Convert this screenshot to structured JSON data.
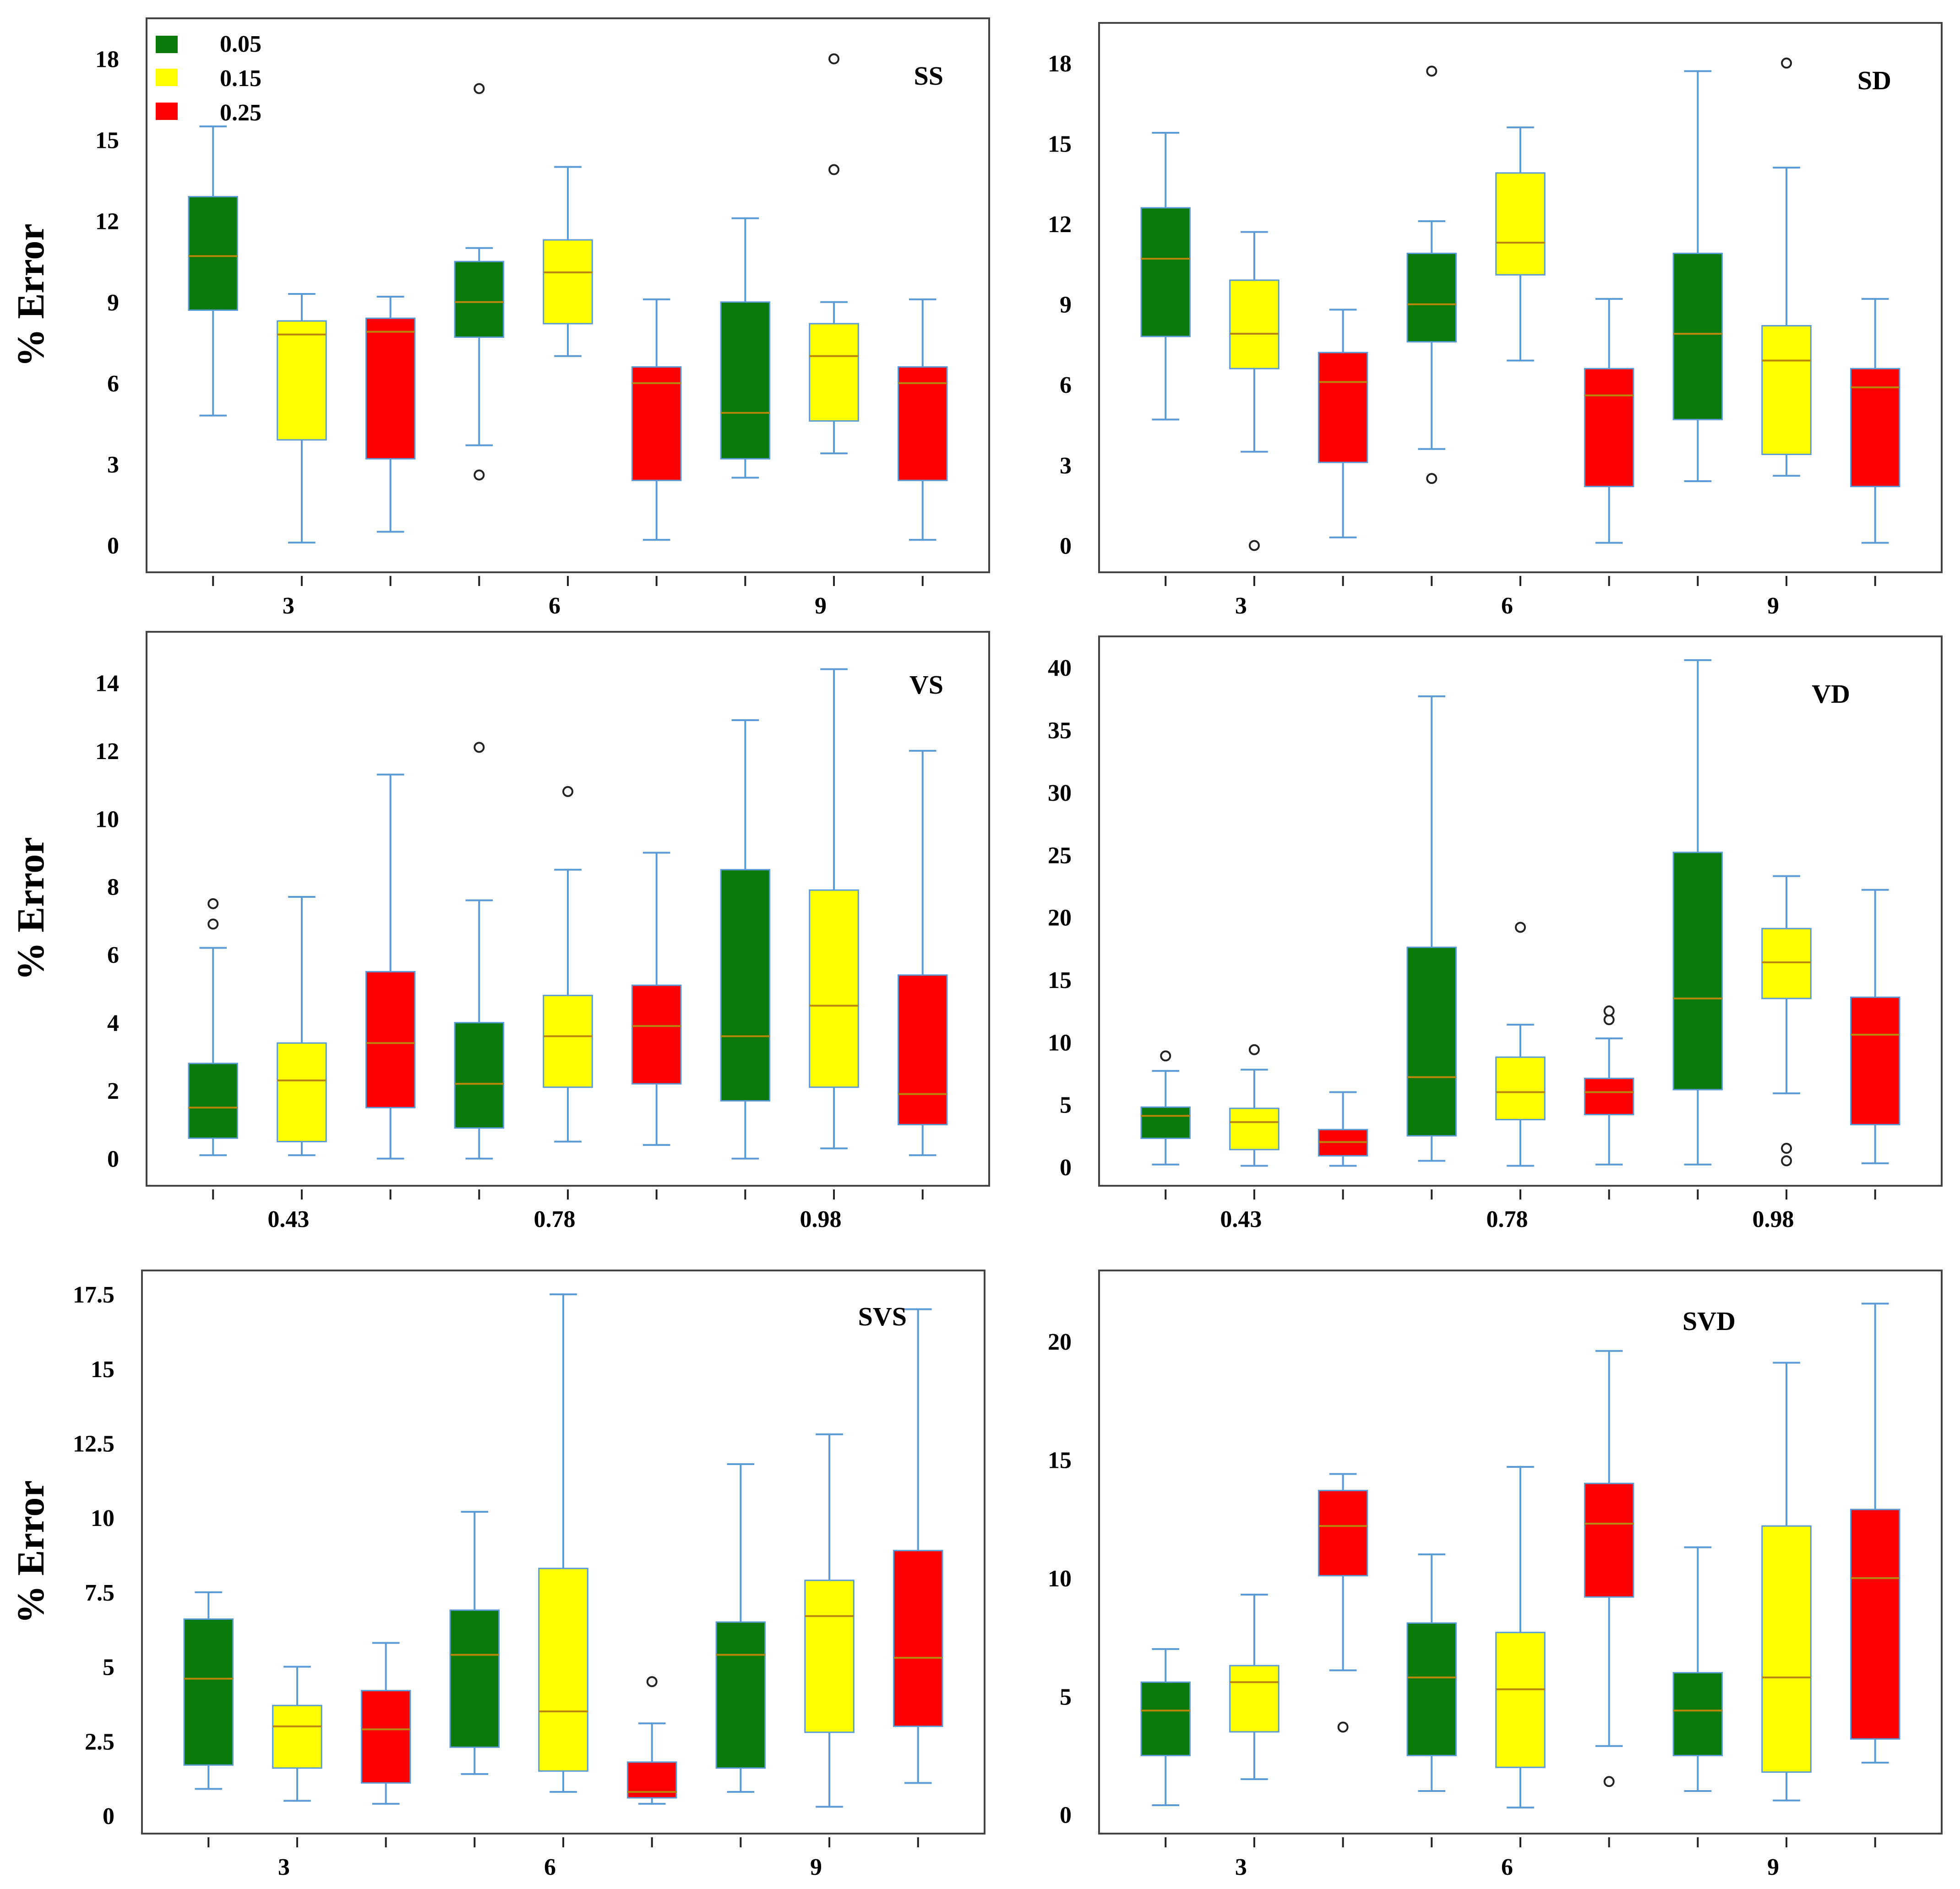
{
  "colors": {
    "0.05": "#0b7a0b",
    "0.15": "#ffff00",
    "0.25": "#ff0000",
    "whisker": "#5b9bd5",
    "median": "#b8860b",
    "frame": "#444444"
  },
  "legend": {
    "entries": [
      {
        "label": "0.05",
        "color": "#0b7a0b"
      },
      {
        "label": "0.15",
        "color": "#ffff00"
      },
      {
        "label": "0.25",
        "color": "#ff0000"
      }
    ]
  },
  "chart_data": [
    {
      "type": "box",
      "title": "SS",
      "ylabel": "% Error",
      "x_tick_labels": [
        "3",
        "6",
        "9"
      ],
      "y_ticks": [
        "0",
        "3",
        "6",
        "9",
        "12",
        "15",
        "18"
      ],
      "ylim": [
        -1,
        19.5
      ],
      "boxes": [
        {
          "group": "3",
          "series": "0.05",
          "min": 4.8,
          "q1": 8.7,
          "median": 10.7,
          "q3": 12.9,
          "max": 15.5,
          "outliers": []
        },
        {
          "group": "3",
          "series": "0.15",
          "min": 0.1,
          "q1": 3.9,
          "median": 7.8,
          "q3": 8.3,
          "max": 9.3,
          "outliers": []
        },
        {
          "group": "3",
          "series": "0.25",
          "min": 0.5,
          "q1": 3.2,
          "median": 7.9,
          "q3": 8.4,
          "max": 9.2,
          "outliers": []
        },
        {
          "group": "6",
          "series": "0.05",
          "min": 3.7,
          "q1": 7.7,
          "median": 9.0,
          "q3": 10.5,
          "max": 11.0,
          "outliers": [
            2.6,
            16.9
          ]
        },
        {
          "group": "6",
          "series": "0.15",
          "min": 7.0,
          "q1": 8.2,
          "median": 10.1,
          "q3": 11.3,
          "max": 14.0,
          "outliers": []
        },
        {
          "group": "6",
          "series": "0.25",
          "min": 0.2,
          "q1": 2.4,
          "median": 6.0,
          "q3": 6.6,
          "max": 9.1,
          "outliers": []
        },
        {
          "group": "9",
          "series": "0.05",
          "min": 2.5,
          "q1": 3.2,
          "median": 4.9,
          "q3": 9.0,
          "max": 12.1,
          "outliers": []
        },
        {
          "group": "9",
          "series": "0.15",
          "min": 3.4,
          "q1": 4.6,
          "median": 7.0,
          "q3": 8.2,
          "max": 9.0,
          "outliers": [
            13.9,
            18.0
          ]
        },
        {
          "group": "9",
          "series": "0.25",
          "min": 0.2,
          "q1": 2.4,
          "median": 6.0,
          "q3": 6.6,
          "max": 9.1,
          "outliers": []
        }
      ]
    },
    {
      "type": "box",
      "title": "SD",
      "ylabel": "",
      "x_tick_labels": [
        "3",
        "6",
        "9"
      ],
      "y_ticks": [
        "0",
        "3",
        "6",
        "9",
        "12",
        "15",
        "18"
      ],
      "ylim": [
        -1,
        19.5
      ],
      "boxes": [
        {
          "group": "3",
          "series": "0.05",
          "min": 4.7,
          "q1": 7.8,
          "median": 10.7,
          "q3": 12.6,
          "max": 15.4,
          "outliers": []
        },
        {
          "group": "3",
          "series": "0.15",
          "min": 3.5,
          "q1": 6.6,
          "median": 7.9,
          "q3": 9.9,
          "max": 11.7,
          "outliers": [
            0.0
          ]
        },
        {
          "group": "3",
          "series": "0.25",
          "min": 0.3,
          "q1": 3.1,
          "median": 6.1,
          "q3": 7.2,
          "max": 8.8,
          "outliers": []
        },
        {
          "group": "6",
          "series": "0.05",
          "min": 3.6,
          "q1": 7.6,
          "median": 9.0,
          "q3": 10.9,
          "max": 12.1,
          "outliers": [
            2.5,
            17.7
          ]
        },
        {
          "group": "6",
          "series": "0.15",
          "min": 6.9,
          "q1": 10.1,
          "median": 11.3,
          "q3": 13.9,
          "max": 15.6,
          "outliers": []
        },
        {
          "group": "6",
          "series": "0.25",
          "min": 0.1,
          "q1": 2.2,
          "median": 5.6,
          "q3": 6.6,
          "max": 9.2,
          "outliers": []
        },
        {
          "group": "9",
          "series": "0.05",
          "min": 2.4,
          "q1": 4.7,
          "median": 7.9,
          "q3": 10.9,
          "max": 17.7,
          "outliers": []
        },
        {
          "group": "9",
          "series": "0.15",
          "min": 2.6,
          "q1": 3.4,
          "median": 6.9,
          "q3": 8.2,
          "max": 14.1,
          "outliers": [
            18.0
          ]
        },
        {
          "group": "9",
          "series": "0.25",
          "min": 0.1,
          "q1": 2.2,
          "median": 5.9,
          "q3": 6.6,
          "max": 9.2,
          "outliers": []
        }
      ]
    },
    {
      "type": "box",
      "title": "VS",
      "ylabel": "% Error",
      "x_tick_labels": [
        "0.43",
        "0.78",
        "0.98"
      ],
      "y_ticks": [
        "0",
        "2",
        "4",
        "6",
        "8",
        "10",
        "12",
        "14"
      ],
      "ylim": [
        -0.8,
        15.5
      ],
      "boxes": [
        {
          "group": "0.43",
          "series": "0.05",
          "min": 0.1,
          "q1": 0.6,
          "median": 1.5,
          "q3": 2.8,
          "max": 6.2,
          "outliers": [
            6.9,
            7.5
          ]
        },
        {
          "group": "0.43",
          "series": "0.15",
          "min": 0.1,
          "q1": 0.5,
          "median": 2.3,
          "q3": 3.4,
          "max": 7.7,
          "outliers": []
        },
        {
          "group": "0.43",
          "series": "0.25",
          "min": 0.0,
          "q1": 1.5,
          "median": 3.4,
          "q3": 5.5,
          "max": 11.3,
          "outliers": []
        },
        {
          "group": "0.78",
          "series": "0.05",
          "min": 0.0,
          "q1": 0.9,
          "median": 2.2,
          "q3": 4.0,
          "max": 7.6,
          "outliers": [
            12.1
          ]
        },
        {
          "group": "0.78",
          "series": "0.15",
          "min": 0.5,
          "q1": 2.1,
          "median": 3.6,
          "q3": 4.8,
          "max": 8.5,
          "outliers": [
            10.8
          ]
        },
        {
          "group": "0.78",
          "series": "0.25",
          "min": 0.4,
          "q1": 2.2,
          "median": 3.9,
          "q3": 5.1,
          "max": 9.0,
          "outliers": []
        },
        {
          "group": "0.98",
          "series": "0.05",
          "min": 0.0,
          "q1": 1.7,
          "median": 3.6,
          "q3": 8.5,
          "max": 12.9,
          "outliers": []
        },
        {
          "group": "0.98",
          "series": "0.15",
          "min": 0.3,
          "q1": 2.1,
          "median": 4.5,
          "q3": 7.9,
          "max": 14.4,
          "outliers": []
        },
        {
          "group": "0.98",
          "series": "0.25",
          "min": 0.1,
          "q1": 1.0,
          "median": 1.9,
          "q3": 5.4,
          "max": 12.0,
          "outliers": []
        }
      ]
    },
    {
      "type": "box",
      "title": "VD",
      "ylabel": "",
      "x_tick_labels": [
        "0.43",
        "0.78",
        "0.98"
      ],
      "y_ticks": [
        "0",
        "5",
        "10",
        "15",
        "20",
        "25",
        "30",
        "35",
        "40"
      ],
      "ylim": [
        -1.5,
        42.5
      ],
      "boxes": [
        {
          "group": "0.43",
          "series": "0.05",
          "min": 0.2,
          "q1": 2.3,
          "median": 4.1,
          "q3": 4.8,
          "max": 7.7,
          "outliers": [
            8.9
          ]
        },
        {
          "group": "0.43",
          "series": "0.15",
          "min": 0.1,
          "q1": 1.4,
          "median": 3.6,
          "q3": 4.7,
          "max": 7.8,
          "outliers": [
            9.4
          ]
        },
        {
          "group": "0.43",
          "series": "0.25",
          "min": 0.1,
          "q1": 0.9,
          "median": 2.0,
          "q3": 3.0,
          "max": 6.0,
          "outliers": []
        },
        {
          "group": "0.78",
          "series": "0.05",
          "min": 0.5,
          "q1": 2.5,
          "median": 7.2,
          "q3": 17.6,
          "max": 37.7,
          "outliers": []
        },
        {
          "group": "0.78",
          "series": "0.15",
          "min": 0.1,
          "q1": 3.8,
          "median": 6.0,
          "q3": 8.8,
          "max": 11.4,
          "outliers": [
            19.2
          ]
        },
        {
          "group": "0.78",
          "series": "0.25",
          "min": 0.2,
          "q1": 4.2,
          "median": 6.0,
          "q3": 7.1,
          "max": 10.3,
          "outliers": [
            11.8,
            12.5
          ]
        },
        {
          "group": "0.98",
          "series": "0.05",
          "min": 0.2,
          "q1": 6.2,
          "median": 13.5,
          "q3": 25.2,
          "max": 40.6,
          "outliers": []
        },
        {
          "group": "0.98",
          "series": "0.15",
          "min": 5.9,
          "q1": 13.5,
          "median": 16.4,
          "q3": 19.1,
          "max": 23.3,
          "outliers": [
            0.5,
            1.5
          ]
        },
        {
          "group": "0.98",
          "series": "0.25",
          "min": 0.3,
          "q1": 3.4,
          "median": 10.6,
          "q3": 13.6,
          "max": 22.2,
          "outliers": []
        }
      ]
    },
    {
      "type": "box",
      "title": "SVS",
      "ylabel": "% Error",
      "x_tick_labels": [
        "3",
        "6",
        "9"
      ],
      "y_ticks": [
        "0",
        "2.5",
        "5",
        "7.5",
        "10",
        "12.5",
        "15",
        "17.5"
      ],
      "ylim": [
        -0.6,
        18.3
      ],
      "boxes": [
        {
          "group": "3",
          "series": "0.05",
          "min": 0.9,
          "q1": 1.7,
          "median": 4.6,
          "q3": 6.6,
          "max": 7.5,
          "outliers": []
        },
        {
          "group": "3",
          "series": "0.15",
          "min": 0.5,
          "q1": 1.6,
          "median": 3.0,
          "q3": 3.7,
          "max": 5.0,
          "outliers": []
        },
        {
          "group": "3",
          "series": "0.25",
          "min": 0.4,
          "q1": 1.1,
          "median": 2.9,
          "q3": 4.2,
          "max": 5.8,
          "outliers": []
        },
        {
          "group": "6",
          "series": "0.05",
          "min": 1.4,
          "q1": 2.3,
          "median": 5.4,
          "q3": 6.9,
          "max": 10.2,
          "outliers": []
        },
        {
          "group": "6",
          "series": "0.15",
          "min": 0.8,
          "q1": 1.5,
          "median": 3.5,
          "q3": 8.3,
          "max": 17.5,
          "outliers": []
        },
        {
          "group": "6",
          "series": "0.25",
          "min": 0.4,
          "q1": 0.6,
          "median": 0.8,
          "q3": 1.8,
          "max": 3.1,
          "outliers": [
            4.5
          ]
        },
        {
          "group": "9",
          "series": "0.05",
          "min": 0.8,
          "q1": 1.6,
          "median": 5.4,
          "q3": 6.5,
          "max": 11.8,
          "outliers": []
        },
        {
          "group": "9",
          "series": "0.15",
          "min": 0.3,
          "q1": 2.8,
          "median": 6.7,
          "q3": 7.9,
          "max": 12.8,
          "outliers": []
        },
        {
          "group": "9",
          "series": "0.25",
          "min": 1.1,
          "q1": 3.0,
          "median": 5.3,
          "q3": 8.9,
          "max": 17.0,
          "outliers": []
        }
      ]
    },
    {
      "type": "box",
      "title": "SVD",
      "ylabel": "",
      "x_tick_labels": [
        "3",
        "6",
        "9"
      ],
      "y_ticks": [
        "0",
        "5",
        "10",
        "15",
        "20"
      ],
      "ylim": [
        -0.8,
        23
      ],
      "boxes": [
        {
          "group": "3",
          "series": "0.05",
          "min": 0.4,
          "q1": 2.5,
          "median": 4.4,
          "q3": 5.6,
          "max": 7.0,
          "outliers": []
        },
        {
          "group": "3",
          "series": "0.15",
          "min": 1.5,
          "q1": 3.5,
          "median": 5.6,
          "q3": 6.3,
          "max": 9.3,
          "outliers": []
        },
        {
          "group": "3",
          "series": "0.25",
          "min": 6.1,
          "q1": 10.1,
          "median": 12.2,
          "q3": 13.7,
          "max": 14.4,
          "outliers": [
            3.7
          ]
        },
        {
          "group": "6",
          "series": "0.05",
          "min": 1.0,
          "q1": 2.5,
          "median": 5.8,
          "q3": 8.1,
          "max": 11.0,
          "outliers": []
        },
        {
          "group": "6",
          "series": "0.15",
          "min": 0.3,
          "q1": 2.0,
          "median": 5.3,
          "q3": 7.7,
          "max": 14.7,
          "outliers": []
        },
        {
          "group": "6",
          "series": "0.25",
          "min": 2.9,
          "q1": 9.2,
          "median": 12.3,
          "q3": 14.0,
          "max": 19.6,
          "outliers": [
            1.4
          ]
        },
        {
          "group": "9",
          "series": "0.05",
          "min": 1.0,
          "q1": 2.5,
          "median": 4.4,
          "q3": 6.0,
          "max": 11.3,
          "outliers": []
        },
        {
          "group": "9",
          "series": "0.15",
          "min": 0.6,
          "q1": 1.8,
          "median": 5.8,
          "q3": 12.2,
          "max": 19.1,
          "outliers": []
        },
        {
          "group": "9",
          "series": "0.25",
          "min": 2.2,
          "q1": 3.2,
          "median": 10.0,
          "q3": 12.9,
          "max": 21.6,
          "outliers": []
        }
      ]
    }
  ]
}
